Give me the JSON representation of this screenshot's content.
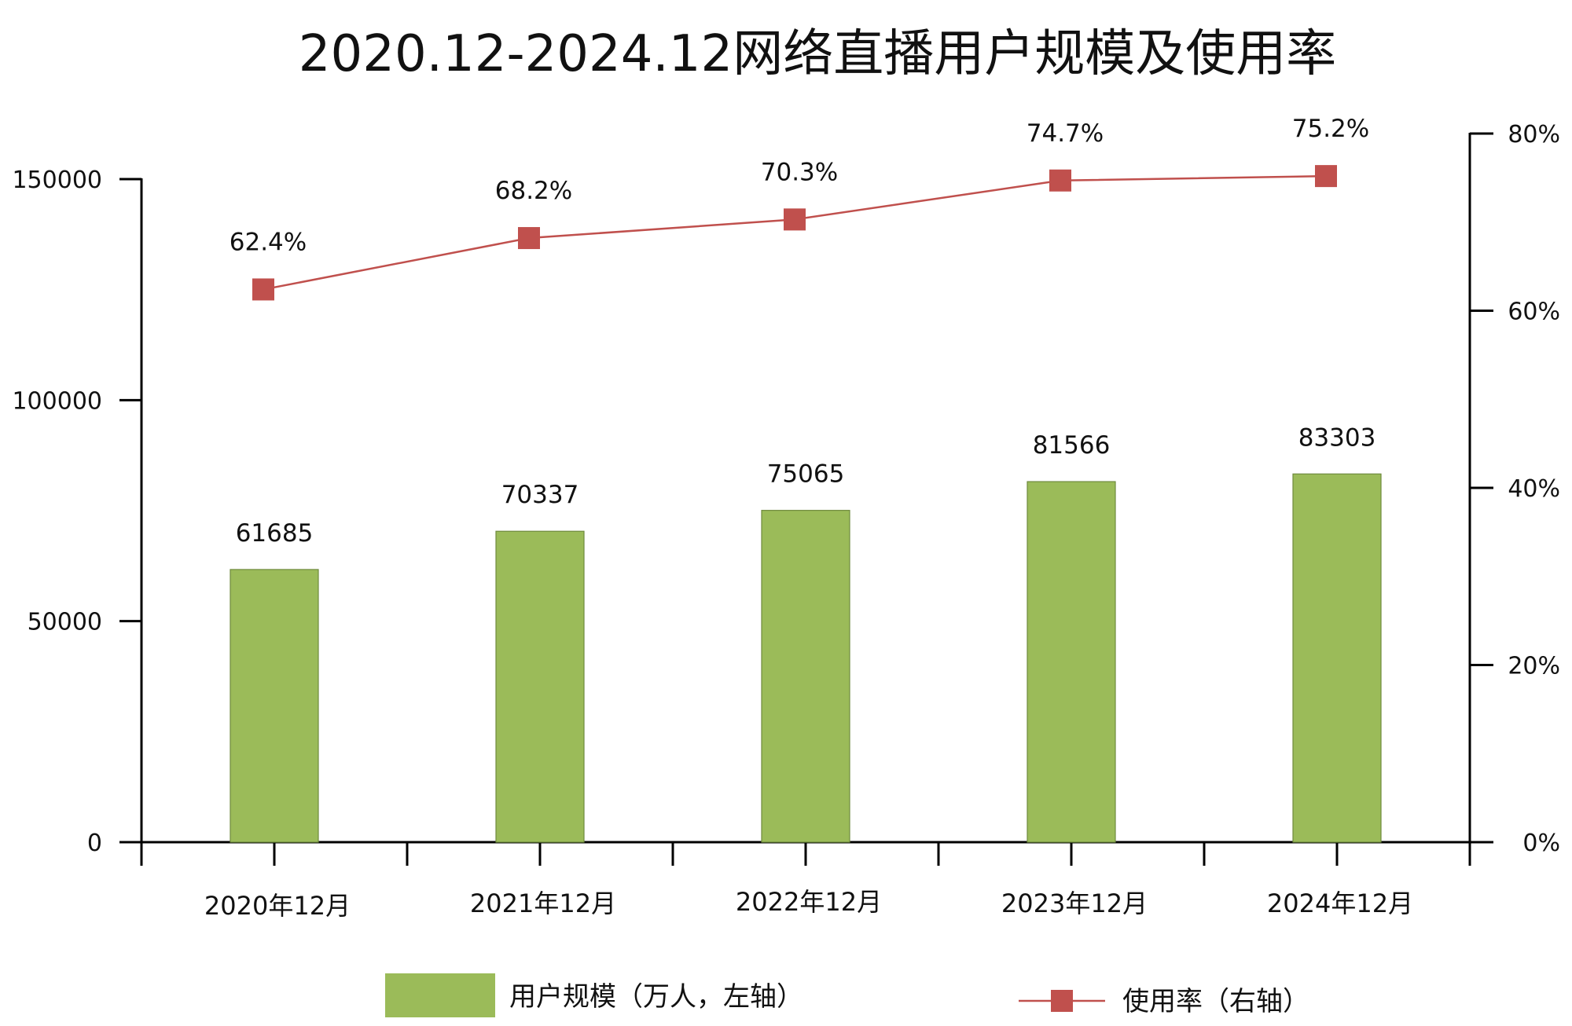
{
  "chart_data": {
    "type": "bar",
    "title": "2020.12-2024.12网络直播用户规模及使用率",
    "categories": [
      "2020年12月",
      "2021年12月",
      "2022年12月",
      "2023年12月",
      "2024年12月"
    ],
    "series": [
      {
        "name": "用户规模（万人，左轴）",
        "type": "bar",
        "axis": "left",
        "values": [
          61685,
          70337,
          75065,
          81566,
          83303
        ],
        "labels": [
          "61685",
          "70337",
          "75065",
          "81566",
          "83303"
        ],
        "color": "#9bbb59"
      },
      {
        "name": "使用率（右轴）",
        "type": "line",
        "axis": "right",
        "values": [
          62.4,
          68.2,
          70.3,
          74.7,
          75.2
        ],
        "labels": [
          "62.4%",
          "68.2%",
          "70.3%",
          "74.7%",
          "75.2%"
        ],
        "color": "#c0504d"
      }
    ],
    "left_axis": {
      "min": 0,
      "max": 150000,
      "ticks": [
        0,
        50000,
        100000,
        150000
      ],
      "tick_labels": [
        "0",
        "50000",
        "100000",
        "150000"
      ]
    },
    "right_axis": {
      "min": 0,
      "max": 80,
      "ticks": [
        0,
        20,
        40,
        60,
        80
      ],
      "tick_labels": [
        "0%",
        "20%",
        "40%",
        "60%",
        "80%"
      ]
    },
    "grid": false,
    "legend_position": "bottom"
  }
}
